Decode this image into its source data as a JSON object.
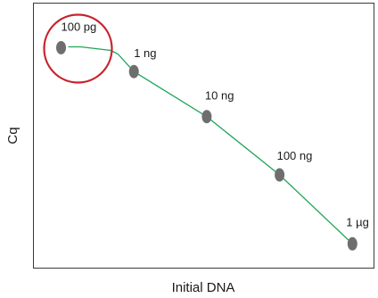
{
  "chart_data": {
    "type": "line",
    "title": "",
    "xlabel": "Initial DNA",
    "ylabel": "Cq",
    "grid": false,
    "categories": [
      "100 pg",
      "1 ng",
      "10 ng",
      "100 ng",
      "1 µg"
    ],
    "series": [
      {
        "values": [
          8.3,
          7.4,
          5.7,
          3.5,
          0.9
        ]
      }
    ],
    "ylim": [
      0,
      10
    ],
    "annotations": [
      {
        "type": "circle",
        "target": "100 pg"
      }
    ]
  },
  "colors": {
    "line": "#21a55a",
    "point": "#6e6e6e",
    "highlight": "#c8232c",
    "frame": "#3a3a3a",
    "text": "#1a1a1a"
  }
}
